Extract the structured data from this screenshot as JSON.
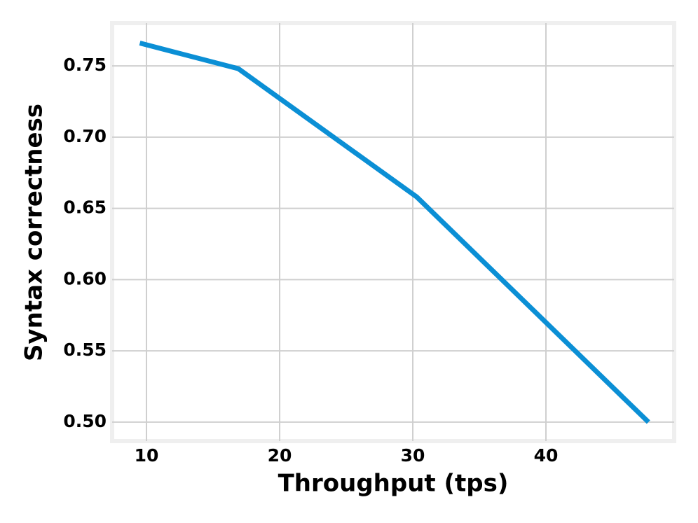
{
  "chart_data": {
    "type": "line",
    "x_label": "Throughput (tps)",
    "y_label": "Syntax correctness",
    "x": [
      9.5,
      16.9,
      30.3,
      47.7
    ],
    "series": [
      {
        "color": "#0b8fd5",
        "values": [
          0.766,
          0.748,
          0.658,
          0.5
        ]
      }
    ],
    "xlim": [
      7.42,
      49.63
    ],
    "xticks": [
      10,
      20,
      30,
      40
    ],
    "ylim": [
      0.4867,
      0.78
    ],
    "yticks": [
      {
        "value": 0.5,
        "label": "0.50"
      },
      {
        "value": 0.55,
        "label": "0.55"
      },
      {
        "value": 0.6,
        "label": "0.60"
      },
      {
        "value": 0.65,
        "label": "0.65"
      },
      {
        "value": 0.7,
        "label": "0.70"
      },
      {
        "value": 0.75,
        "label": "0.75"
      }
    ],
    "grid": true
  }
}
